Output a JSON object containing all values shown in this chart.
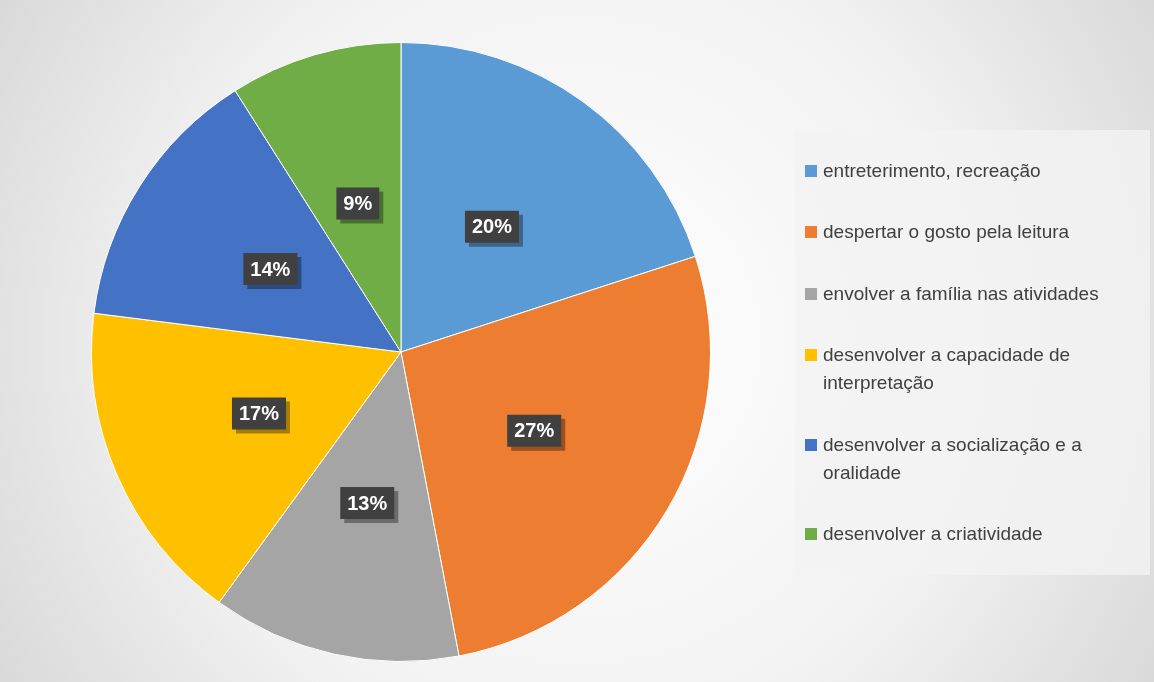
{
  "chart_data": {
    "type": "pie",
    "categories": [
      "entreterimento, recreação",
      "despertar o gosto pela leitura",
      "envolver a família nas atividades",
      "desenvolver a capacidade de interpretação",
      "desenvolver a socialização e a oralidade",
      "desenvolver a criatividade"
    ],
    "values": [
      20,
      27,
      13,
      17,
      14,
      9
    ],
    "colors": [
      "#5b9bd5",
      "#ed7d31",
      "#a5a5a5",
      "#ffc000",
      "#4472c4",
      "#70ad47"
    ],
    "value_labels": [
      "20%",
      "27%",
      "13%",
      "17%",
      "14%",
      "9%"
    ],
    "legend": "right"
  }
}
